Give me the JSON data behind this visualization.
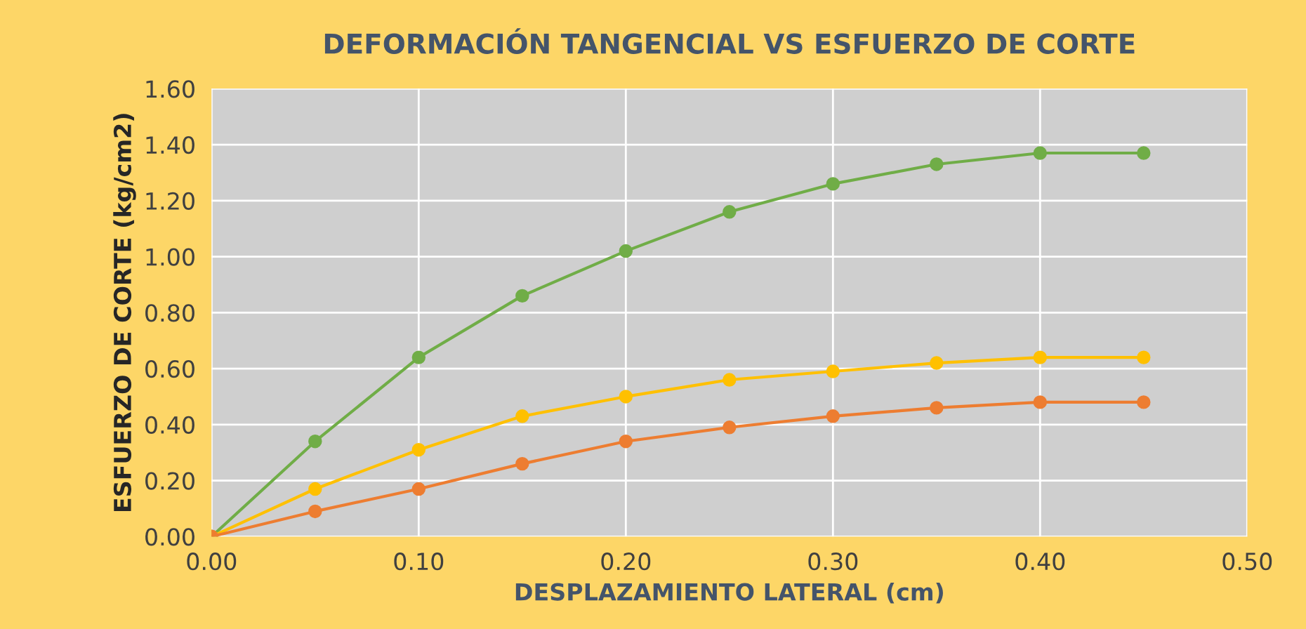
{
  "chart_data": {
    "type": "line",
    "title": "DEFORMACIÓN TANGENCIAL VS ESFUERZO DE CORTE",
    "xlabel": "DESPLAZAMIENTO LATERAL (cm)",
    "ylabel": "ESFUERZO DE CORTE (kg/cm2)",
    "x": [
      0,
      0.05,
      0.1,
      0.15,
      0.2,
      0.25,
      0.3,
      0.35,
      0.4,
      0.45
    ],
    "series": [
      {
        "color": "#70ad47",
        "values": [
          0,
          0.34,
          0.64,
          0.86,
          1.02,
          1.16,
          1.26,
          1.33,
          1.37,
          1.37
        ]
      },
      {
        "color": "#ffc000",
        "values": [
          0,
          0.17,
          0.31,
          0.43,
          0.5,
          0.56,
          0.59,
          0.62,
          0.64,
          0.64
        ]
      },
      {
        "color": "#ed7d31",
        "values": [
          0,
          0.09,
          0.17,
          0.26,
          0.34,
          0.39,
          0.43,
          0.46,
          0.48,
          0.48
        ]
      }
    ],
    "xlim": [
      0,
      0.5
    ],
    "xticks": [
      {
        "value": 0,
        "label": "0.00"
      },
      {
        "value": 0.1,
        "label": "0.10"
      },
      {
        "value": 0.2,
        "label": "0.20"
      },
      {
        "value": 0.3,
        "label": "0.30"
      },
      {
        "value": 0.4,
        "label": "0.40"
      },
      {
        "value": 0.5,
        "label": "0.50"
      }
    ],
    "ylim": [
      0,
      1.6
    ],
    "yticks": [
      {
        "value": 0,
        "label": "0.00"
      },
      {
        "value": 0.2,
        "label": "0.20"
      },
      {
        "value": 0.4,
        "label": "0.40"
      },
      {
        "value": 0.6,
        "label": "0.60"
      },
      {
        "value": 0.8,
        "label": "0.80"
      },
      {
        "value": 1.0,
        "label": "1.00"
      },
      {
        "value": 1.2,
        "label": "1.20"
      },
      {
        "value": 1.4,
        "label": "1.40"
      },
      {
        "value": 1.6,
        "label": "1.60"
      }
    ],
    "grid": true,
    "marker": "circle",
    "line_style": "solid",
    "legend": false
  }
}
